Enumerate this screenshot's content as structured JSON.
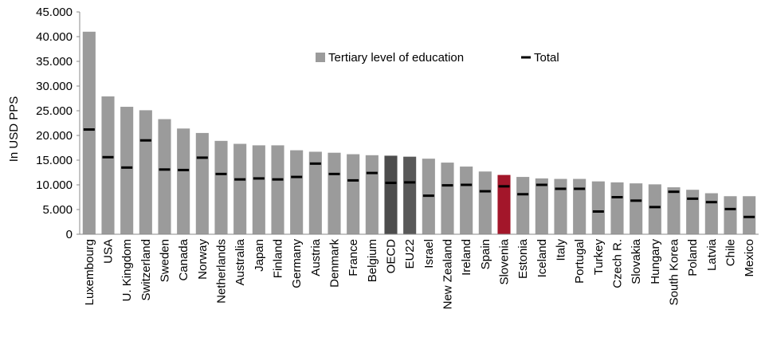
{
  "chart_data": {
    "type": "bar",
    "ylabel": "In USD PPS",
    "ylim": [
      0,
      45000
    ],
    "ytick_values": [
      0,
      5000,
      10000,
      15000,
      20000,
      25000,
      30000,
      35000,
      40000,
      45000
    ],
    "ytick_labels": [
      "0",
      "5.000",
      "10.000",
      "15.000",
      "20.000",
      "25.000",
      "30.000",
      "35.000",
      "40.000",
      "45.000"
    ],
    "grid": false,
    "legend_position": "top-center",
    "categories": [
      "Luxembourg",
      "USA",
      "U. Kingdom",
      "Switzerland",
      "Sweden",
      "Canada",
      "Norway",
      "Netherlands",
      "Australia",
      "Japan",
      "Finland",
      "Germany",
      "Austria",
      "Denmark",
      "France",
      "Belgium",
      "OECD",
      "EU22",
      "Israel",
      "New Zealand",
      "Ireland",
      "Spain",
      "Slovenia",
      "Estonia",
      "Iceland",
      "Italy",
      "Portugal",
      "Turkey",
      "Czech R.",
      "Slovakia",
      "Hungary",
      "South Korea",
      "Poland",
      "Latvia",
      "Chile",
      "Mexico"
    ],
    "series": [
      {
        "name": "Tertiary level of education",
        "kind": "bar",
        "values": [
          41000,
          27900,
          25800,
          25100,
          23300,
          21400,
          20500,
          18900,
          18300,
          18000,
          18000,
          17000,
          16700,
          16500,
          16200,
          16000,
          15900,
          15700,
          15300,
          14500,
          13700,
          12700,
          12000,
          11600,
          11300,
          11200,
          11200,
          10700,
          10500,
          10300,
          10100,
          9500,
          9000,
          8300,
          7700,
          7700
        ]
      },
      {
        "name": "Total",
        "kind": "marker",
        "values": [
          21200,
          15600,
          13500,
          19000,
          13100,
          13000,
          15500,
          12200,
          11100,
          11300,
          11100,
          11600,
          14300,
          12200,
          10900,
          12400,
          10400,
          10500,
          7800,
          9900,
          10000,
          8700,
          9700,
          8100,
          10000,
          9200,
          9200,
          4600,
          7500,
          6800,
          5500,
          8600,
          7200,
          6500,
          5100,
          3500
        ]
      }
    ],
    "colors": {
      "bar": "#9b9b9b",
      "oecd": "#4d4d4d",
      "eu22": "#595959",
      "slovenia": "#a3162a",
      "marker": "#000000",
      "axis": "#888888"
    },
    "highlight": {
      "OECD": "oecd",
      "EU22": "eu22",
      "Slovenia": "slovenia"
    }
  }
}
